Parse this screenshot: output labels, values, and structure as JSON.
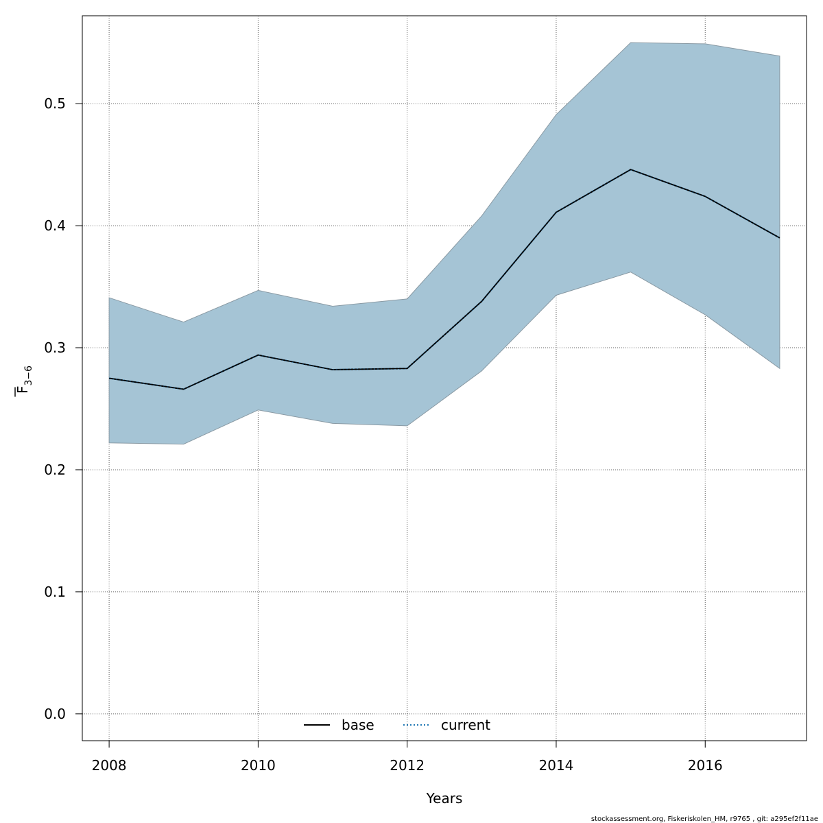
{
  "chart_data": {
    "type": "line",
    "xlabel": "Years",
    "ylabel": {
      "main": "F",
      "subscript": "3−6"
    },
    "xlim": [
      2007.64,
      2017.36
    ],
    "ylim": [
      -0.022,
      0.572
    ],
    "x_ticks": [
      2008,
      2010,
      2012,
      2014,
      2016
    ],
    "y_ticks": [
      0.0,
      0.1,
      0.2,
      0.3,
      0.4,
      0.5
    ],
    "y_tick_labels": [
      "0.0",
      "0.1",
      "0.2",
      "0.3",
      "0.4",
      "0.5"
    ],
    "grid": true,
    "x": [
      2008,
      2009,
      2010,
      2011,
      2012,
      2013,
      2014,
      2015,
      2016,
      2017
    ],
    "band": {
      "lower": [
        0.222,
        0.221,
        0.249,
        0.238,
        0.236,
        0.281,
        0.343,
        0.362,
        0.327,
        0.283
      ],
      "upper": [
        0.341,
        0.321,
        0.347,
        0.334,
        0.34,
        0.408,
        0.491,
        0.55,
        0.549,
        0.539
      ],
      "color": "#a5c4d5"
    },
    "series": [
      {
        "name": "base",
        "style": "solid",
        "color": "#000000",
        "values": [
          0.275,
          0.266,
          0.294,
          0.282,
          0.283,
          0.338,
          0.411,
          0.446,
          0.424,
          0.39
        ]
      },
      {
        "name": "current",
        "style": "dotted",
        "color": "#1f77b4",
        "values": [
          0.275,
          0.266,
          0.294,
          0.282,
          0.283,
          0.338,
          0.411,
          0.446,
          0.424,
          0.39
        ]
      }
    ],
    "legend": {
      "position": "bottom-center",
      "entries": [
        "base",
        "current"
      ]
    }
  },
  "footnote": "stockassessment.org, Fiskeriskolen_HM, r9765 , git: a295ef2f11ae"
}
